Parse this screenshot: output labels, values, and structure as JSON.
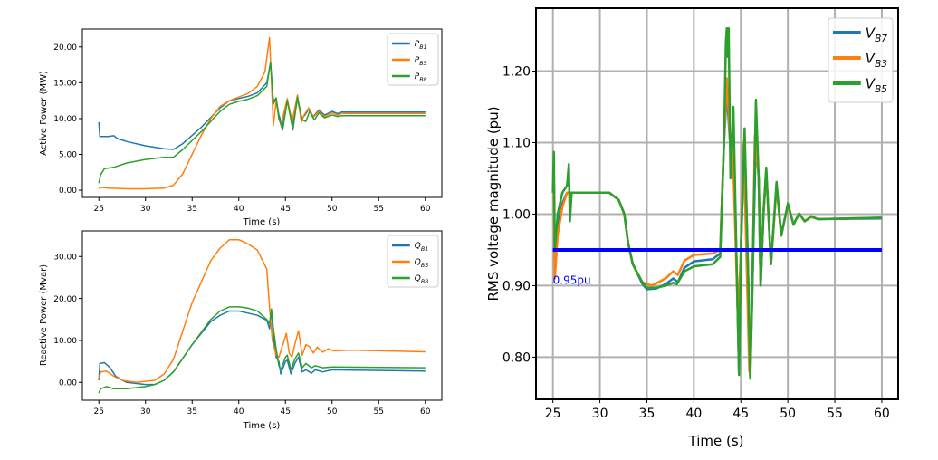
{
  "chart_data": [
    {
      "type": "line",
      "xlabel": "Time (s)",
      "ylabel": "Active Power (MW)",
      "xlim": [
        23.23,
        61.77
      ],
      "ylim": [
        -1.0,
        22.5
      ],
      "xticks": [
        25,
        30,
        35,
        40,
        45,
        50,
        55,
        60
      ],
      "xtick_labels": [
        "25",
        "30",
        "35",
        "40",
        "45",
        "50",
        "55",
        "60"
      ],
      "yticks": [
        0,
        5,
        10,
        15,
        20
      ],
      "ytick_labels": [
        "0.00",
        "5.00",
        "10.00",
        "15.00",
        "20.00"
      ],
      "grid": false,
      "legend": "top-right",
      "series": [
        {
          "name": "P",
          "sub": "B1",
          "color": "#1f77b4",
          "x": [
            25,
            25.1,
            26,
            26.6,
            27,
            28,
            30,
            32,
            33,
            34,
            36,
            38,
            39,
            40,
            41,
            42,
            43,
            43.4,
            43.7,
            44,
            44.3,
            44.7,
            45.2,
            45.8,
            46.3,
            46.7,
            47.1,
            47.5,
            48,
            48.6,
            49.2,
            50,
            50.6,
            51,
            60
          ],
          "y": [
            9.5,
            7.5,
            7.5,
            7.6,
            7.2,
            6.8,
            6.2,
            5.8,
            5.7,
            6.5,
            8.8,
            11.5,
            12.5,
            12.8,
            13.1,
            13.6,
            15,
            17.8,
            12.5,
            12.8,
            10.5,
            9,
            12.5,
            9.2,
            12.8,
            10,
            10.5,
            11.3,
            10.3,
            11.2,
            10.5,
            11,
            10.7,
            10.9,
            10.9
          ]
        },
        {
          "name": "P",
          "sub": "B5",
          "color": "#ff7f0e",
          "x": [
            25,
            25.2,
            26,
            28,
            30,
            32,
            33,
            34,
            35,
            36,
            37,
            38,
            39,
            40,
            41,
            42,
            42.8,
            43.3,
            43.7,
            44,
            44.3,
            44.6,
            45.2,
            45.7,
            46.3,
            46.7,
            47,
            47.5,
            48,
            48.6,
            49.2,
            50,
            50.6,
            51,
            60
          ],
          "y": [
            0.2,
            0.4,
            0.3,
            0.2,
            0.2,
            0.3,
            0.7,
            2.3,
            5,
            7.7,
            10,
            11.7,
            12.5,
            13,
            13.5,
            14.5,
            16.5,
            21.3,
            9,
            12.5,
            10,
            9.5,
            12.8,
            9.5,
            13.3,
            9.5,
            10.5,
            11.5,
            10.2,
            11,
            10.3,
            10.8,
            10.5,
            10.7,
            10.7
          ]
        },
        {
          "name": "P",
          "sub": "B8",
          "color": "#2ca02c",
          "x": [
            25,
            25.2,
            25.6,
            26.6,
            28,
            30,
            32,
            33,
            34,
            36,
            38,
            39,
            40,
            41,
            42,
            43,
            43.4,
            43.7,
            44,
            44.3,
            44.7,
            45.2,
            45.8,
            46.3,
            46.8,
            47.2,
            47.6,
            48.1,
            48.6,
            49.2,
            50,
            50.6,
            51,
            60
          ],
          "y": [
            1,
            2.2,
            3,
            3.2,
            3.8,
            4.3,
            4.6,
            4.6,
            5.7,
            8.2,
            11,
            12,
            12.4,
            12.7,
            13.2,
            14.5,
            17.9,
            12,
            12.9,
            10,
            8.4,
            12.5,
            8.4,
            13,
            9.8,
            9.6,
            11,
            9.8,
            10.8,
            10.1,
            10.5,
            10.3,
            10.4,
            10.4
          ]
        }
      ]
    },
    {
      "type": "line",
      "xlabel": "Time (s)",
      "ylabel": "Reactive Power (Mvar)",
      "xlim": [
        23.23,
        61.77
      ],
      "ylim": [
        -4.25,
        36.1
      ],
      "xticks": [
        25,
        30,
        35,
        40,
        45,
        50,
        55,
        60
      ],
      "xtick_labels": [
        "25",
        "30",
        "35",
        "40",
        "45",
        "50",
        "55",
        "60"
      ],
      "yticks": [
        0,
        10,
        20,
        30
      ],
      "ytick_labels": [
        "0.00",
        "10.00",
        "20.00",
        "30.00"
      ],
      "grid": false,
      "legend": "top-right",
      "series": [
        {
          "name": "Q",
          "sub": "B1",
          "color": "#1f77b4",
          "x": [
            25,
            25.1,
            25.6,
            26.2,
            26.8,
            27.5,
            28,
            30,
            31,
            32,
            33,
            35,
            37,
            38,
            39,
            40,
            41,
            42,
            43,
            43.3,
            43.5,
            43.7,
            44,
            44.3,
            44.5,
            45,
            45.2,
            45.6,
            46,
            46.4,
            46.8,
            47.2,
            47.8,
            48.2,
            49,
            50,
            60
          ],
          "y": [
            0.5,
            4.5,
            4.7,
            3.5,
            1.5,
            0.5,
            0,
            -0.5,
            -0.5,
            0.5,
            2.5,
            9,
            14.5,
            16,
            17,
            17,
            16.5,
            16,
            14.8,
            12.8,
            17,
            11,
            6,
            5,
            2,
            5,
            5.3,
            2,
            4.5,
            6,
            2.5,
            3,
            2.2,
            3,
            2.5,
            3,
            2.7
          ]
        },
        {
          "name": "Q",
          "sub": "B5",
          "color": "#ff7f0e",
          "x": [
            25,
            25.2,
            25.8,
            26.6,
            27.5,
            29,
            31,
            32,
            33,
            35,
            37,
            38,
            39,
            40,
            41,
            42,
            43,
            43.3,
            43.6,
            44,
            44.3,
            44.8,
            45.1,
            45.4,
            45.7,
            46,
            46.4,
            46.8,
            47.2,
            47.6,
            48,
            48.4,
            49,
            49.6,
            50.2,
            52,
            60
          ],
          "y": [
            1,
            2.5,
            2.7,
            1.5,
            0.5,
            0,
            0.5,
            2,
            5.5,
            19,
            29,
            32,
            34,
            34,
            33,
            31.5,
            27,
            18,
            10,
            6.5,
            6,
            9.5,
            11.7,
            7,
            6,
            9,
            12.3,
            6.5,
            9,
            8.5,
            7,
            8.4,
            7.2,
            8,
            7.5,
            7.7,
            7.3
          ]
        },
        {
          "name": "Q",
          "sub": "B8",
          "color": "#2ca02c",
          "x": [
            25,
            25.2,
            25.8,
            26.6,
            28,
            30,
            31,
            32,
            33,
            35,
            37,
            38,
            39,
            40,
            41,
            42,
            43,
            43.3,
            43.5,
            43.7,
            44,
            44.3,
            44.5,
            45,
            45.2,
            45.6,
            46,
            46.4,
            46.8,
            47.2,
            47.8,
            48.2,
            49,
            50,
            60
          ],
          "y": [
            -2.5,
            -1.5,
            -1,
            -1.5,
            -1.5,
            -1,
            -0.5,
            0.5,
            2.5,
            9,
            15,
            17,
            18,
            18,
            17.7,
            17,
            15,
            14,
            17.5,
            13,
            8,
            4,
            3,
            6,
            6.5,
            3,
            5.5,
            7,
            3.5,
            4.5,
            3.5,
            4,
            3.5,
            3.7,
            3.5
          ]
        }
      ]
    },
    {
      "type": "line",
      "xlabel": "Time (s)",
      "ylabel": "RMS voltage magnitude (pu)",
      "xlim": [
        23.2,
        61.74
      ],
      "ylim": [
        0.741,
        1.288
      ],
      "xticks": [
        25,
        30,
        35,
        40,
        45,
        50,
        55,
        60
      ],
      "xtick_labels": [
        "25",
        "30",
        "35",
        "40",
        "45",
        "50",
        "55",
        "60"
      ],
      "yticks": [
        0.8,
        0.9,
        1.0,
        1.1,
        1.2
      ],
      "ytick_labels": [
        "0.80",
        "0.90",
        "1.00",
        "1.10",
        "1.20"
      ],
      "grid": true,
      "legend": "top-right",
      "series": [
        {
          "name": "V",
          "sub": "B7",
          "color": "#1f77b4",
          "x": [
            25,
            25.1,
            25.2,
            25.5,
            26,
            26.5,
            27,
            30,
            31,
            32,
            32.6,
            33,
            33.5,
            34.5,
            35,
            36,
            37,
            37.8,
            38.3,
            39,
            40,
            42,
            42.8,
            43.2,
            43.5,
            43.9,
            44.2,
            44.6,
            44.8,
            45,
            45.4,
            45.8,
            46,
            46.2,
            46.6,
            46.9,
            47.1,
            47.4,
            47.7,
            48.2,
            48.8,
            49.3,
            50,
            50.6,
            51.2,
            51.8,
            52.5,
            53.2,
            60
          ],
          "y": [
            1.03,
            1.05,
            0.93,
            0.985,
            1.015,
            1.03,
            1.03,
            1.03,
            1.03,
            1.02,
            1.0,
            0.96,
            0.93,
            0.903,
            0.895,
            0.896,
            0.902,
            0.91,
            0.905,
            0.925,
            0.934,
            0.937,
            0.945,
            1.1,
            1.17,
            1.09,
            1.11,
            0.9,
            0.78,
            0.95,
            1.11,
            0.9,
            0.775,
            0.88,
            1.11,
            1.05,
            0.9,
            1.0,
            1.06,
            0.93,
            1.04,
            0.97,
            1.013,
            0.986,
            1.0,
            0.99,
            0.996,
            0.993,
            0.994
          ]
        },
        {
          "name": "V",
          "sub": "B3",
          "color": "#ff7f0e",
          "x": [
            25,
            25.1,
            25.2,
            25.5,
            26,
            26.5,
            27,
            30,
            31,
            32,
            32.6,
            33,
            33.5,
            34.5,
            35.5,
            37,
            37.8,
            38.3,
            39,
            40,
            42,
            42.8,
            43.2,
            43.5,
            43.9,
            44.1,
            44.7,
            45,
            45.3,
            45.9,
            46.2,
            46.5,
            46.9,
            47.1,
            47.4,
            47.7,
            48.2,
            48.8,
            49.3,
            50,
            50.6,
            51.2,
            51.8,
            52.5,
            53.2,
            60
          ],
          "y": [
            1.03,
            1.05,
            0.91,
            0.97,
            1.01,
            1.03,
            1.03,
            1.03,
            1.03,
            1.02,
            1.0,
            0.96,
            0.93,
            0.905,
            0.9,
            0.91,
            0.92,
            0.915,
            0.935,
            0.943,
            0.945,
            0.95,
            1.1,
            1.19,
            1.09,
            1.11,
            0.85,
            0.95,
            1.1,
            0.78,
            0.88,
            1.11,
            1.05,
            0.9,
            1.0,
            1.06,
            0.93,
            1.04,
            0.97,
            1.013,
            0.986,
            1.0,
            0.99,
            0.996,
            0.993,
            0.995
          ]
        },
        {
          "name": "V",
          "sub": "B5",
          "color": "#2ca02c",
          "x": [
            25,
            25.1,
            25.2,
            25.5,
            26,
            26.5,
            26.7,
            26.8,
            27,
            30,
            31,
            32,
            32.6,
            33,
            33.5,
            34.5,
            35,
            36,
            37,
            37.8,
            38.2,
            39,
            40,
            42,
            42.8,
            43.2,
            43.4,
            43.5,
            43.6,
            43.7,
            43.9,
            44.2,
            44.6,
            44.8,
            45,
            45.4,
            45.8,
            46,
            46.2,
            46.6,
            46.9,
            47.1,
            47.4,
            47.7,
            48.2,
            48.8,
            49.3,
            50,
            50.6,
            51.2,
            51.8,
            52.5,
            53.2,
            60
          ],
          "y": [
            1.03,
            1.087,
            0.95,
            1.0,
            1.03,
            1.04,
            1.07,
            0.99,
            1.03,
            1.03,
            1.03,
            1.02,
            1.0,
            0.96,
            0.93,
            0.905,
            0.897,
            0.897,
            0.9,
            0.904,
            0.902,
            0.92,
            0.927,
            0.93,
            0.94,
            1.1,
            1.24,
            1.26,
            1.22,
            1.26,
            1.05,
            1.15,
            0.9,
            0.775,
            0.95,
            1.12,
            0.9,
            0.77,
            0.88,
            1.16,
            1.05,
            0.9,
            1.0,
            1.065,
            0.93,
            1.045,
            0.97,
            1.015,
            0.985,
            1.001,
            0.99,
            0.997,
            0.993,
            0.995
          ]
        }
      ],
      "reference_line": {
        "y": 0.95,
        "x": [
          25,
          60
        ],
        "color": "#0000ff",
        "label": "0.95pu"
      }
    }
  ]
}
